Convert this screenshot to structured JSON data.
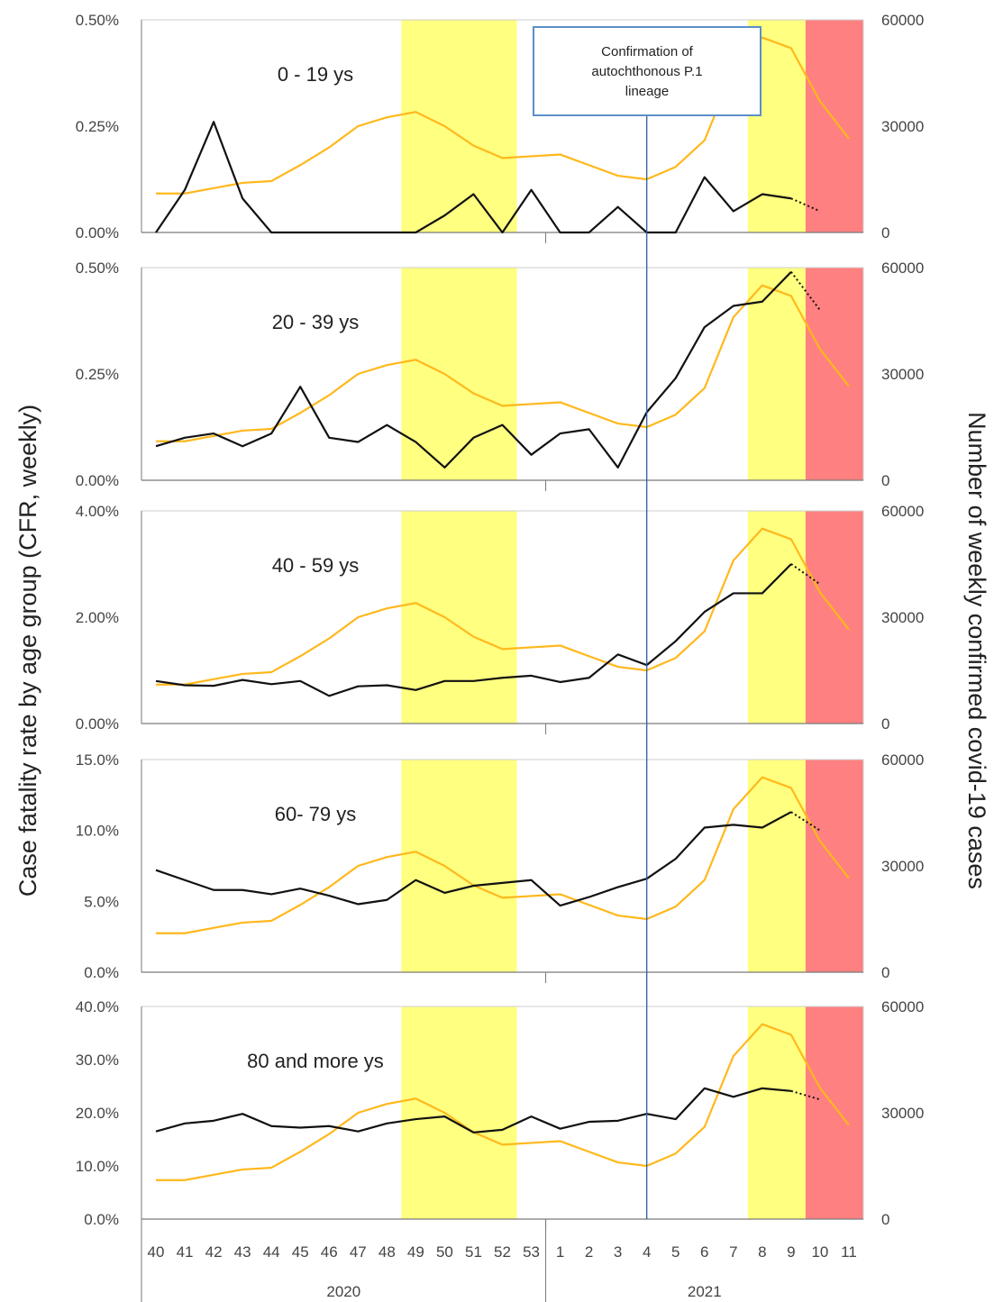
{
  "chart_data": {
    "type": "line",
    "x_weeks": [
      "40",
      "41",
      "42",
      "43",
      "44",
      "45",
      "46",
      "47",
      "48",
      "49",
      "50",
      "51",
      "52",
      "53",
      "1",
      "2",
      "3",
      "4",
      "5",
      "6",
      "7",
      "8",
      "9",
      "10",
      "11"
    ],
    "years": [
      {
        "label": "2020",
        "weeks": [
          "40",
          "53"
        ]
      },
      {
        "label": "2021",
        "weeks": [
          "1",
          "11"
        ]
      }
    ],
    "ylabel_left": "Case fatality rate by age group (CFR, weekly)",
    "ylabel_right": "Number of weekly confirmed covid-19 cases",
    "right_ylim": [
      0,
      60000
    ],
    "right_ticks": [
      "0",
      "30000",
      "60000"
    ],
    "shaded_periods": [
      {
        "color": "#ffff80",
        "from": "49",
        "to": "52"
      },
      {
        "color": "#ffff80",
        "from": "8",
        "to": "9"
      },
      {
        "color": "#ff8080",
        "from": "10",
        "to": "11"
      }
    ],
    "annotation": {
      "text_lines": [
        "Confirmation of",
        "autochthonous P.1",
        "lineage"
      ],
      "at_week": "4"
    },
    "colors": {
      "cfr": "#111111",
      "cases": "#ffb81c",
      "annotation": "#5b8fc7",
      "marker_line": "#2f5e9e"
    },
    "cases": [
      11000,
      11000,
      12500,
      14000,
      14500,
      19000,
      24000,
      30000,
      32500,
      34000,
      30000,
      24500,
      21000,
      21500,
      22000,
      19000,
      16000,
      15000,
      18500,
      26000,
      46000,
      55000,
      52000,
      37000,
      26500
    ],
    "panels": [
      {
        "label": "0 - 19 ys",
        "ylim": [
          0,
          0.5
        ],
        "ticks": [
          "0.00%",
          "0.25%",
          "0.50%"
        ],
        "cfr": [
          0.0,
          0.1,
          0.26,
          0.08,
          0.0,
          0.0,
          0.0,
          0.0,
          0.0,
          0.0,
          0.04,
          0.09,
          0.0,
          0.1,
          0.0,
          0.0,
          0.06,
          0.0,
          0.0,
          0.13,
          0.05,
          0.09,
          0.08,
          0.05
        ]
      },
      {
        "label": "20 - 39 ys",
        "ylim": [
          0,
          0.5
        ],
        "ticks": [
          "0.00%",
          "0.25%",
          "0.50%"
        ],
        "cfr": [
          0.08,
          0.1,
          0.11,
          0.08,
          0.11,
          0.22,
          0.1,
          0.09,
          0.13,
          0.09,
          0.03,
          0.1,
          0.13,
          0.06,
          0.11,
          0.12,
          0.03,
          0.16,
          0.24,
          0.36,
          0.41,
          0.42,
          0.49,
          0.4
        ]
      },
      {
        "label": "40 - 59 ys",
        "ylim": [
          0,
          4
        ],
        "ticks": [
          "0.00%",
          "2.00%",
          "4.00%"
        ],
        "cfr": [
          0.8,
          0.72,
          0.71,
          0.82,
          0.74,
          0.8,
          0.52,
          0.7,
          0.72,
          0.63,
          0.8,
          0.8,
          0.86,
          0.9,
          0.78,
          0.86,
          1.3,
          1.1,
          1.55,
          2.1,
          2.45,
          2.45,
          3.0,
          2.62
        ]
      },
      {
        "label": "60- 79 ys",
        "ylim": [
          0,
          15
        ],
        "ticks": [
          "0.0%",
          "5.0%",
          "10.0%",
          "15.0%"
        ],
        "cfr": [
          7.2,
          6.5,
          5.8,
          5.8,
          5.5,
          5.9,
          5.4,
          4.8,
          5.1,
          6.5,
          5.6,
          6.1,
          6.3,
          6.5,
          4.7,
          5.3,
          6.0,
          6.6,
          8.0,
          10.2,
          10.4,
          10.2,
          11.3,
          10.0
        ]
      },
      {
        "label": "80 and more ys",
        "ylim": [
          0,
          40
        ],
        "ticks": [
          "0.0%",
          "10.0%",
          "20.0%",
          "30.0%",
          "40.0%"
        ],
        "cfr": [
          16.5,
          18.0,
          18.5,
          19.8,
          17.5,
          17.2,
          17.5,
          16.5,
          18.0,
          18.8,
          19.3,
          16.3,
          16.8,
          19.3,
          17.0,
          18.3,
          18.5,
          19.8,
          18.8,
          24.6,
          23.0,
          24.6,
          24.1,
          22.5
        ]
      }
    ]
  }
}
